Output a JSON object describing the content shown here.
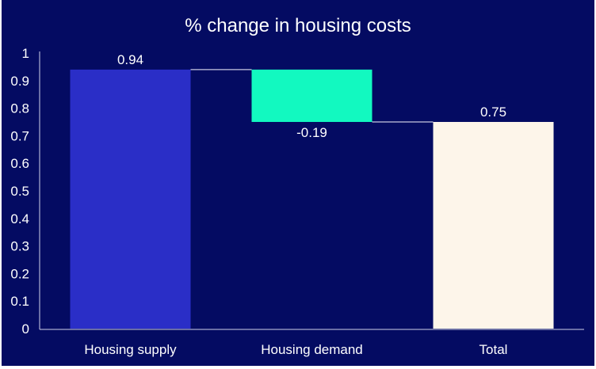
{
  "chart_data": {
    "type": "waterfall",
    "title": "% change in housing costs",
    "categories": [
      "Housing supply",
      "Housing demand",
      "Total"
    ],
    "values": [
      0.94,
      -0.19,
      0.75
    ],
    "data_labels": [
      "0.94",
      "-0.19",
      "0.75"
    ],
    "bar_kinds": [
      "increase",
      "decrease",
      "total"
    ],
    "ylim": [
      0,
      1
    ],
    "yticks": [
      "0",
      "0.1",
      "0.2",
      "0.3",
      "0.4",
      "0.5",
      "0.6",
      "0.7",
      "0.8",
      "0.9",
      "1"
    ],
    "grid": false,
    "legend": "none",
    "colors": {
      "background": "#040b62",
      "increase": "#2a2ec7",
      "decrease": "#12f9c0",
      "total": "#fdf5ea",
      "connector": "#c8c8e0",
      "text": "#ffffff"
    }
  }
}
